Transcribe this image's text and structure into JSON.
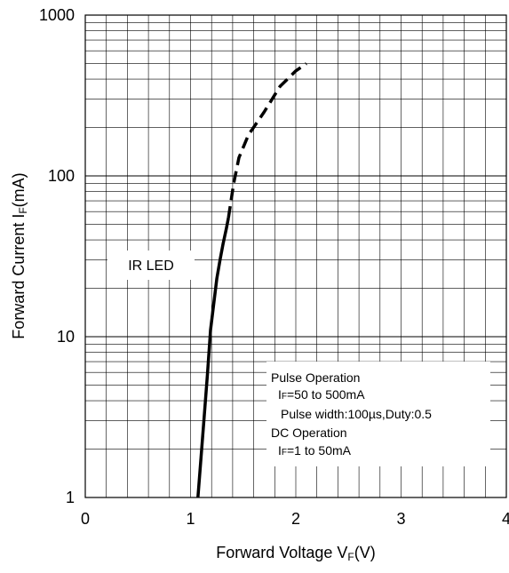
{
  "chart_data": {
    "type": "line",
    "title": "",
    "xlabel": {
      "main": "Forward Voltage V",
      "sub": "F",
      "unit": "(V)"
    },
    "ylabel": {
      "main": "Forward Current I",
      "sub": "F",
      "unit": "(mA)"
    },
    "x_scale": "linear",
    "y_scale": "log",
    "xlim": [
      0,
      4
    ],
    "ylim": [
      1,
      1000
    ],
    "x_ticks": [
      0,
      1,
      2,
      3,
      4
    ],
    "x_tick_labels": [
      "0",
      "1",
      "2",
      "3",
      "4"
    ],
    "y_ticks": [
      1,
      10,
      100,
      1000
    ],
    "y_tick_labels": [
      "1",
      "10",
      "100",
      "1000"
    ],
    "grid": true,
    "series": [
      {
        "segment": "DC Operation",
        "line_style": "solid",
        "color": "#000000",
        "x": [
          1.07,
          1.1,
          1.13,
          1.16,
          1.19,
          1.22,
          1.25,
          1.28,
          1.31,
          1.34,
          1.36
        ],
        "y": [
          1,
          1.8,
          3.2,
          5.8,
          11,
          16,
          23,
          30,
          38,
          47,
          55
        ]
      },
      {
        "segment": "Pulse Operation",
        "line_style": "dashed",
        "color": "#000000",
        "x": [
          1.36,
          1.41,
          1.46,
          1.55,
          1.7,
          1.85,
          2.0,
          2.1
        ],
        "y": [
          55,
          90,
          130,
          180,
          250,
          360,
          450,
          500
        ]
      }
    ],
    "annotations": {
      "device_label": "IR LED",
      "conditions": {
        "pulse_title": "Pulse Operation",
        "pulse_if_prefix": "I",
        "pulse_if_sub": "F",
        "pulse_if_value": "=50 to 500mA",
        "pulse_width": "Pulse width:100µs,Duty:0.5",
        "dc_title": "DC Operation",
        "dc_if_prefix": "I",
        "dc_if_sub": "F",
        "dc_if_value": "=1 to 50mA"
      }
    }
  }
}
